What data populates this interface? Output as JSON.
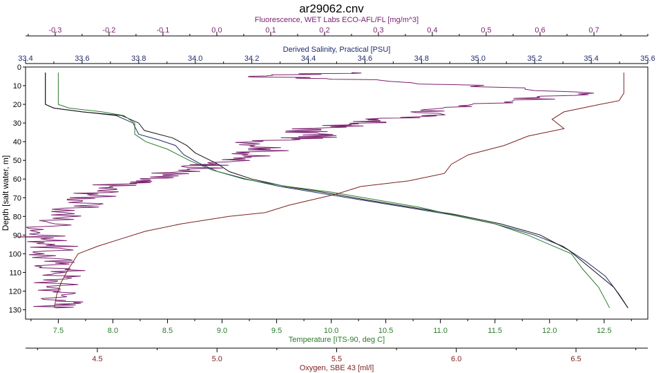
{
  "chart_data": {
    "type": "line",
    "title": "ar29062.cnv",
    "y_axis": {
      "label": "Depth [salt water, m]",
      "range": [
        0,
        135
      ],
      "ticks": [
        0,
        10,
        20,
        30,
        40,
        50,
        60,
        70,
        80,
        90,
        100,
        110,
        120,
        130
      ],
      "inverted": true
    },
    "axes": [
      {
        "id": "fluor",
        "label": "Fluorescence, WET Labs ECO-AFL/FL [mg/m^3]",
        "color": "#7a1f6e",
        "position": "top",
        "range": [
          -0.355,
          0.8
        ],
        "ticks": [
          "-0.3",
          "-0.2",
          "-0.1",
          "0.0",
          "0.1",
          "0.2",
          "0.3",
          "0.4",
          "0.5",
          "0.6",
          "0.7"
        ]
      },
      {
        "id": "sal",
        "label": "Derived Salinity, Practical [PSU]",
        "color": "#1f2a6b",
        "position": "top",
        "range": [
          33.4,
          35.6
        ],
        "ticks": [
          "33.4",
          "33.6",
          "33.8",
          "34.0",
          "34.2",
          "34.4",
          "34.6",
          "34.8",
          "35.0",
          "35.2",
          "35.4",
          "35.6"
        ]
      },
      {
        "id": "temp",
        "label": "Temperature [ITS-90, deg C]",
        "color": "#2a7a2a",
        "position": "bottom",
        "range": [
          7.2,
          12.9
        ],
        "ticks": [
          "7.5",
          "8.0",
          "8.5",
          "9.0",
          "9.5",
          "10.0",
          "10.5",
          "11.0",
          "11.5",
          "12.0",
          "12.5"
        ]
      },
      {
        "id": "oxy",
        "label": "Oxygen, SBE 43 [ml/l]",
        "color": "#7a1f1f",
        "position": "bottom",
        "range": [
          4.2,
          6.8
        ],
        "ticks": [
          "4.5",
          "5.0",
          "5.5",
          "6.0",
          "6.5"
        ]
      }
    ],
    "grid": false,
    "series": [
      {
        "axis": "fluor",
        "color": "#7a1f6e",
        "jitter": 0.012,
        "points": [
          [
            0.25,
            3
          ],
          [
            0.06,
            5
          ],
          [
            0.3,
            7
          ],
          [
            0.7,
            14
          ],
          [
            0.55,
            18
          ],
          [
            0.42,
            22
          ],
          [
            0.38,
            26
          ],
          [
            0.3,
            28
          ],
          [
            0.25,
            31
          ],
          [
            0.15,
            34
          ],
          [
            0.2,
            37
          ],
          [
            0.08,
            40
          ],
          [
            0.1,
            44
          ],
          [
            0.05,
            48
          ],
          [
            0.0,
            52
          ],
          [
            -0.05,
            55
          ],
          [
            -0.1,
            58
          ],
          [
            -0.15,
            61
          ],
          [
            -0.2,
            64
          ],
          [
            -0.22,
            68
          ],
          [
            -0.25,
            72
          ],
          [
            -0.28,
            78
          ],
          [
            -0.3,
            84
          ],
          [
            -0.33,
            90
          ],
          [
            -0.3,
            95
          ],
          [
            -0.32,
            100
          ],
          [
            -0.3,
            105
          ],
          [
            -0.28,
            110
          ],
          [
            -0.3,
            115
          ],
          [
            -0.29,
            120
          ],
          [
            -0.28,
            125
          ],
          [
            -0.3,
            129
          ]
        ]
      },
      {
        "axis": "sal",
        "color": "#1f2a6b",
        "jitter": 0,
        "points": [
          [
            33.47,
            3
          ],
          [
            33.47,
            20
          ],
          [
            33.5,
            22
          ],
          [
            33.6,
            24
          ],
          [
            33.72,
            26
          ],
          [
            33.78,
            30
          ],
          [
            33.8,
            36
          ],
          [
            33.87,
            39
          ],
          [
            33.93,
            42
          ],
          [
            33.96,
            47
          ],
          [
            34.02,
            52
          ],
          [
            34.08,
            56
          ],
          [
            34.18,
            60
          ],
          [
            34.3,
            64
          ],
          [
            34.42,
            67
          ],
          [
            34.58,
            71
          ],
          [
            34.74,
            75
          ],
          [
            34.9,
            79
          ],
          [
            35.06,
            84
          ],
          [
            35.2,
            90
          ],
          [
            35.3,
            96
          ],
          [
            35.38,
            104
          ],
          [
            35.45,
            112
          ],
          [
            35.5,
            122
          ],
          [
            35.53,
            129
          ]
        ]
      },
      {
        "axis": "sal",
        "color": "#111111",
        "jitter": 0,
        "points": [
          [
            33.47,
            3
          ],
          [
            33.47,
            20
          ],
          [
            33.5,
            22
          ],
          [
            33.6,
            24
          ],
          [
            33.74,
            26
          ],
          [
            33.8,
            30
          ],
          [
            33.82,
            34
          ],
          [
            33.92,
            38
          ],
          [
            33.97,
            42
          ],
          [
            34.0,
            46
          ],
          [
            34.08,
            52
          ],
          [
            34.12,
            56
          ],
          [
            34.2,
            60
          ],
          [
            34.32,
            64
          ],
          [
            34.45,
            67
          ],
          [
            34.6,
            71
          ],
          [
            34.76,
            75
          ],
          [
            34.92,
            79
          ],
          [
            35.08,
            84
          ],
          [
            35.22,
            90
          ],
          [
            35.32,
            98
          ],
          [
            35.4,
            108
          ],
          [
            35.48,
            118
          ],
          [
            35.53,
            129
          ]
        ]
      },
      {
        "axis": "temp",
        "color": "#2a7a2a",
        "jitter": 0,
        "points": [
          [
            7.5,
            3
          ],
          [
            7.5,
            20
          ],
          [
            7.6,
            22
          ],
          [
            7.9,
            24
          ],
          [
            8.1,
            26
          ],
          [
            8.2,
            30
          ],
          [
            8.2,
            36
          ],
          [
            8.3,
            40
          ],
          [
            8.5,
            44
          ],
          [
            8.7,
            50
          ],
          [
            8.9,
            55
          ],
          [
            9.2,
            60
          ],
          [
            9.6,
            64
          ],
          [
            10.0,
            67
          ],
          [
            10.4,
            71
          ],
          [
            10.8,
            75
          ],
          [
            11.1,
            79
          ],
          [
            11.5,
            84
          ],
          [
            11.8,
            90
          ],
          [
            12.0,
            95
          ],
          [
            12.2,
            100
          ],
          [
            12.3,
            108
          ],
          [
            12.45,
            118
          ],
          [
            12.55,
            129
          ]
        ]
      },
      {
        "axis": "oxy",
        "color": "#7a1f1f",
        "jitter": 0,
        "points": [
          [
            6.7,
            3
          ],
          [
            6.7,
            14
          ],
          [
            6.68,
            18
          ],
          [
            6.6,
            20
          ],
          [
            6.45,
            24
          ],
          [
            6.4,
            28
          ],
          [
            6.45,
            33
          ],
          [
            6.3,
            37
          ],
          [
            6.2,
            42
          ],
          [
            6.05,
            47
          ],
          [
            5.98,
            52
          ],
          [
            5.95,
            57
          ],
          [
            5.8,
            61
          ],
          [
            5.6,
            64
          ],
          [
            5.5,
            68
          ],
          [
            5.3,
            74
          ],
          [
            5.2,
            78
          ],
          [
            5.05,
            80
          ],
          [
            4.85,
            84
          ],
          [
            4.7,
            88
          ],
          [
            4.6,
            92
          ],
          [
            4.5,
            96
          ],
          [
            4.42,
            100
          ],
          [
            4.38,
            108
          ],
          [
            4.35,
            115
          ],
          [
            4.33,
            122
          ],
          [
            4.32,
            129
          ]
        ]
      }
    ]
  }
}
